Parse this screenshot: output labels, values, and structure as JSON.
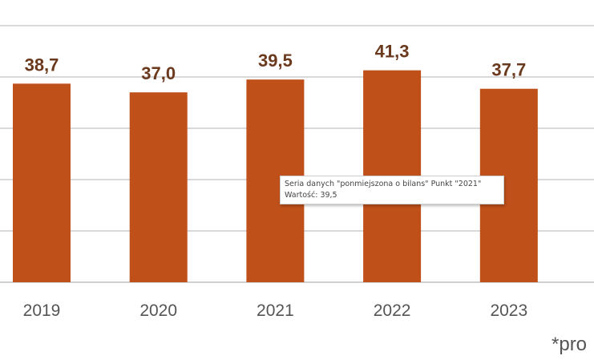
{
  "chart_data": {
    "type": "bar",
    "title": "",
    "xlabel": "",
    "ylabel": "",
    "categories": [
      "2019",
      "2020",
      "2021",
      "2022",
      "2023"
    ],
    "values": [
      38.7,
      37.0,
      39.5,
      41.3,
      37.7
    ],
    "data_labels": [
      "38,7",
      "37,0",
      "39,5",
      "41,3",
      "37,7"
    ],
    "ylim": [
      0,
      50
    ],
    "gridlines": [
      10,
      20,
      30,
      40,
      50
    ],
    "grid": true,
    "bar_color": "#C0501A",
    "label_color": "#6B3A1E"
  },
  "tooltip": {
    "line1": "Seria danych \"ponmiejszona o bilans\" Punkt \"2021\"",
    "line2": "Wartość: 39,5"
  },
  "footnote": "*pro"
}
